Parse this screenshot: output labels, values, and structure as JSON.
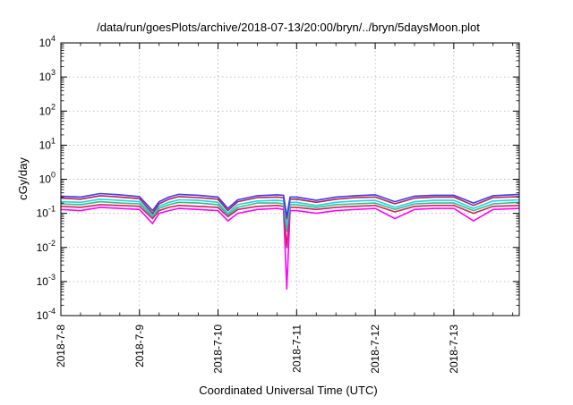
{
  "chart_data": {
    "type": "line",
    "title": "/data/run/goesPlots/archive/2018-07-13/20:00/bryn/../bryn/5daysMoon.plot",
    "xlabel": "Coordinated Universal Time (UTC)",
    "ylabel": "cGy/day",
    "yscale": "log",
    "ylim": [
      0.0001,
      10000
    ],
    "xlim": [
      "2018-07-08T00:00",
      "2018-07-13T20:00"
    ],
    "x_ticks": [
      "2018-7-8",
      "2018-7-9",
      "2018-7-10",
      "2018-7-11",
      "2018-7-12",
      "2018-7-13"
    ],
    "y_ticks": [
      {
        "base": "10",
        "exp": "-4"
      },
      {
        "base": "10",
        "exp": "-3"
      },
      {
        "base": "10",
        "exp": "-2"
      },
      {
        "base": "10",
        "exp": "-1"
      },
      {
        "base": "10",
        "exp": "0"
      },
      {
        "base": "10",
        "exp": "1"
      },
      {
        "base": "10",
        "exp": "2"
      },
      {
        "base": "10",
        "exp": "3"
      },
      {
        "base": "10",
        "exp": "4"
      }
    ],
    "grid": true,
    "x": [
      "2018-07-08T00:00",
      "2018-07-08T06:00",
      "2018-07-08T12:00",
      "2018-07-08T18:00",
      "2018-07-09T00:00",
      "2018-07-09T04:00",
      "2018-07-09T06:00",
      "2018-07-09T09:00",
      "2018-07-09T12:00",
      "2018-07-09T18:00",
      "2018-07-10T00:00",
      "2018-07-10T03:00",
      "2018-07-10T06:00",
      "2018-07-10T12:00",
      "2018-07-10T18:00",
      "2018-07-10T20:00",
      "2018-07-10T21:00",
      "2018-07-10T22:00",
      "2018-07-11T00:00",
      "2018-07-11T06:00",
      "2018-07-11T12:00",
      "2018-07-11T18:00",
      "2018-07-12T00:00",
      "2018-07-12T06:00",
      "2018-07-12T12:00",
      "2018-07-12T18:00",
      "2018-07-13T00:00",
      "2018-07-13T06:00",
      "2018-07-13T12:00",
      "2018-07-13T20:00"
    ],
    "series": [
      {
        "color": "#3a3aff",
        "values": [
          0.32,
          0.3,
          0.38,
          0.35,
          0.31,
          0.12,
          0.22,
          0.3,
          0.36,
          0.34,
          0.3,
          0.14,
          0.25,
          0.33,
          0.35,
          0.34,
          0.08,
          0.3,
          0.3,
          0.24,
          0.3,
          0.33,
          0.35,
          0.22,
          0.32,
          0.34,
          0.34,
          0.2,
          0.33,
          0.36
        ]
      },
      {
        "color": "#c02040",
        "values": [
          0.28,
          0.26,
          0.33,
          0.3,
          0.27,
          0.1,
          0.19,
          0.26,
          0.31,
          0.29,
          0.26,
          0.12,
          0.22,
          0.29,
          0.3,
          0.29,
          0.07,
          0.26,
          0.26,
          0.21,
          0.26,
          0.29,
          0.3,
          0.19,
          0.28,
          0.3,
          0.3,
          0.17,
          0.29,
          0.31
        ]
      },
      {
        "color": "#19d3f3",
        "values": [
          0.22,
          0.21,
          0.26,
          0.24,
          0.22,
          0.09,
          0.16,
          0.21,
          0.25,
          0.24,
          0.21,
          0.1,
          0.18,
          0.23,
          0.24,
          0.23,
          0.05,
          0.21,
          0.21,
          0.17,
          0.21,
          0.23,
          0.24,
          0.15,
          0.22,
          0.24,
          0.24,
          0.14,
          0.23,
          0.25
        ]
      },
      {
        "color": "#2ec27e",
        "values": [
          0.19,
          0.18,
          0.22,
          0.2,
          0.19,
          0.08,
          0.14,
          0.18,
          0.21,
          0.2,
          0.18,
          0.09,
          0.15,
          0.2,
          0.2,
          0.19,
          0.03,
          0.18,
          0.18,
          0.15,
          0.18,
          0.19,
          0.2,
          0.13,
          0.19,
          0.2,
          0.2,
          0.12,
          0.19,
          0.21
        ]
      },
      {
        "color": "#d81b60",
        "values": [
          0.16,
          0.15,
          0.18,
          0.17,
          0.16,
          0.07,
          0.12,
          0.15,
          0.17,
          0.16,
          0.15,
          0.08,
          0.13,
          0.16,
          0.17,
          0.16,
          0.01,
          0.15,
          0.15,
          0.13,
          0.15,
          0.16,
          0.17,
          0.11,
          0.16,
          0.17,
          0.17,
          0.1,
          0.16,
          0.17
        ]
      },
      {
        "color": "#ff00ff",
        "values": [
          0.13,
          0.12,
          0.15,
          0.14,
          0.13,
          0.05,
          0.1,
          0.12,
          0.14,
          0.13,
          0.12,
          0.06,
          0.1,
          0.13,
          0.14,
          0.13,
          0.0006,
          0.12,
          0.12,
          0.1,
          0.12,
          0.13,
          0.14,
          0.07,
          0.13,
          0.14,
          0.14,
          0.06,
          0.13,
          0.14
        ]
      }
    ]
  }
}
